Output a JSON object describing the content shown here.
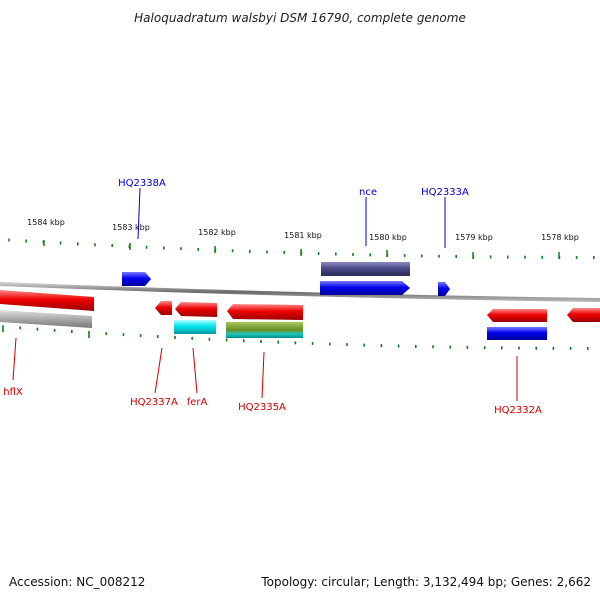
{
  "title": "Haloquadratum walsbyi DSM 16790, complete genome",
  "footer": {
    "accession": "Accession: NC_008212",
    "topology": "Topology: circular; Length: 3,132,494 bp; Genes: 2,662"
  },
  "ruler_labels": [
    "1584 kbp",
    "1583 kbp",
    "1582 kbp",
    "1581 kbp",
    "1580 kbp",
    "1579 kbp",
    "1578 kbp"
  ],
  "genes_above": [
    "HQ2338A",
    "nce",
    "HQ2333A"
  ],
  "genes_below": [
    "hflX",
    "HQ2337A",
    "ferA",
    "HQ2335A",
    "HQ2332A"
  ],
  "colors": {
    "label_top": "#0000cc",
    "label_bottom": "#cc0000",
    "tick": "#1a7a1a",
    "backbone": "#7a7a7a",
    "gene_red": "#ee0000",
    "gene_blue": "#0000ee",
    "gene_navy": "#4a4a8a",
    "gene_cyan": "#00e5ee",
    "gene_olive": "#6b8e23",
    "gene_gray": "#aaaaaa"
  }
}
